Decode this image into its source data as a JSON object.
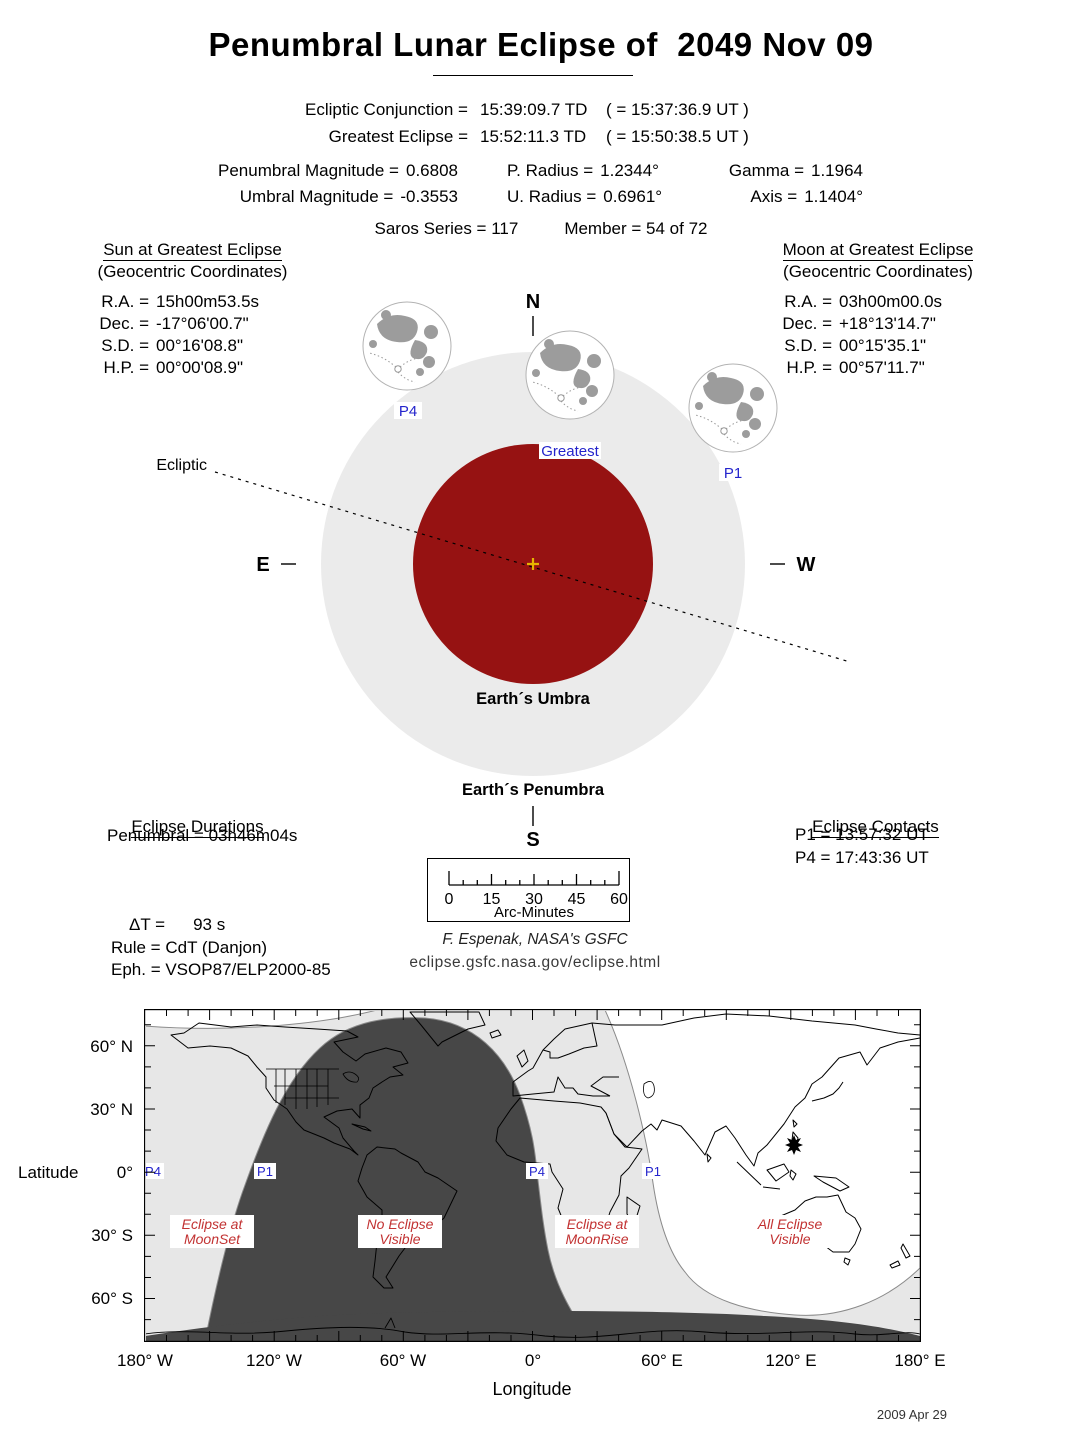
{
  "title": "Penumbral Lunar Eclipse of  2049 Nov 09",
  "header": {
    "rows": [
      {
        "label": "Ecliptic Conjunction =",
        "td": "15:39:09.7 TD",
        "ut": "( = 15:37:36.9 UT )"
      },
      {
        "label": "Greatest Eclipse =",
        "td": "15:52:11.3 TD",
        "ut": "( = 15:50:38.5 UT )"
      }
    ]
  },
  "stats": {
    "pen_mag_label": "Penumbral Magnitude =",
    "pen_mag": "0.6808",
    "umb_mag_label": "Umbral Magnitude =",
    "umb_mag": "-0.3553",
    "p_radius_label": "P. Radius =",
    "p_radius": "1.2344°",
    "u_radius_label": "U. Radius =",
    "u_radius": "0.6961°",
    "gamma_label": "Gamma =",
    "gamma": "1.1964",
    "axis_label": "Axis =",
    "axis": "1.1404°",
    "saros": "Saros Series = 117",
    "member": "Member = 54 of 72"
  },
  "sun": {
    "title": "Sun at Greatest Eclipse",
    "subtitle": "(Geocentric Coordinates)",
    "rows": [
      {
        "k": "R.A. =",
        "v": "15h00m53.5s"
      },
      {
        "k": "Dec. =",
        "v": "-17°06'00.7\""
      },
      {
        "k": "S.D. =",
        "v": "00°16'08.8\""
      },
      {
        "k": "H.P. =",
        "v": "00°00'08.9\""
      }
    ]
  },
  "moon": {
    "title": "Moon at Greatest Eclipse",
    "subtitle": "(Geocentric Coordinates)",
    "rows": [
      {
        "k": "R.A. =",
        "v": "03h00m00.0s"
      },
      {
        "k": "Dec. =",
        "v": "+18°13'14.7\""
      },
      {
        "k": "S.D. =",
        "v": "00°15'35.1\""
      },
      {
        "k": "H.P. =",
        "v": "00°57'11.7\""
      }
    ]
  },
  "diagram": {
    "north": "N",
    "south": "S",
    "east": "E",
    "west": "W",
    "ecliptic": "Ecliptic",
    "umbra_label": "Earth´s Umbra",
    "penumbra_label": "Earth´s Penumbra",
    "greatest": "Greatest",
    "p1": "P1",
    "p4": "P4"
  },
  "durations": {
    "title": "Eclipse Durations",
    "penumbral": "Penumbral = 03h46m04s"
  },
  "contacts": {
    "title": "Eclipse Contacts",
    "p1": "P1 = 13:57:32 UT",
    "p4": "P4 = 17:43:36 UT"
  },
  "scale": {
    "ticks": [
      "0",
      "15",
      "30",
      "45",
      "60"
    ],
    "label": "Arc-Minutes"
  },
  "params": {
    "dt_label": "ΔT =",
    "dt_value": "93 s",
    "rule": "Rule = CdT (Danjon)",
    "eph": "Eph. = VSOP87/ELP2000-85"
  },
  "credit": {
    "author": "F. Espenak, NASA's GSFC",
    "url": "eclipse.gsfc.nasa.gov/eclipse.html"
  },
  "map": {
    "lat_title": "Latitude",
    "lon_title": "Longitude",
    "lat_ticks": [
      "60° N",
      "30° N",
      "0°",
      "30° S",
      "60° S"
    ],
    "lon_ticks": [
      "180° W",
      "120° W",
      "60° W",
      "0°",
      "60° E",
      "120° E",
      "180° E"
    ],
    "curve_labels": [
      "P4",
      "P1",
      "P4",
      "P1"
    ],
    "zones": [
      [
        "Eclipse at",
        "MoonSet"
      ],
      [
        "No Eclipse",
        "Visible"
      ],
      [
        "Eclipse at",
        "MoonRise"
      ],
      [
        "All Eclipse",
        "Visible"
      ]
    ]
  },
  "date_stamp": "2009 Apr 29",
  "colors": {
    "umbra": "#961212",
    "penumbra": "#ebebeb",
    "map_dark": "#474747",
    "map_light": "#e7e7e7",
    "label_blue": "#2424cc",
    "label_red": "#c23232",
    "cross_gold": "#e6b400"
  }
}
